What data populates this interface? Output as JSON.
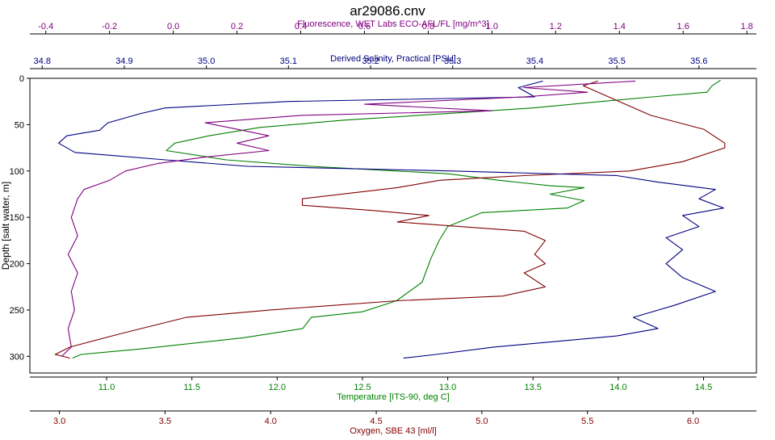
{
  "chart_data": {
    "type": "line",
    "title": "ar29086.cnv",
    "y_axis": {
      "label": "Depth [salt water, m]",
      "range": [
        0,
        318
      ],
      "inverted": true,
      "ticks": [
        0,
        50,
        100,
        150,
        200,
        250,
        300
      ]
    },
    "x_axes": [
      {
        "id": "fluorescence",
        "label": "Fluorescence, WET Labs ECO-AFL/FL [mg/m^3]",
        "position": "top",
        "color": "#800080",
        "range": [
          -0.45,
          1.83
        ],
        "ticks": [
          -0.4,
          -0.2,
          0.0,
          0.2,
          0.4,
          0.6,
          0.8,
          1.0,
          1.2,
          1.4,
          1.6,
          1.8
        ],
        "tick_labels": [
          "-0.4",
          "-0.2",
          "0.0",
          "0.2",
          "0.4",
          "0.6",
          "0.8",
          "1.0",
          "1.2",
          "1.4",
          "1.6",
          "1.8"
        ]
      },
      {
        "id": "salinity",
        "label": "Derived Salinity, Practical [PSU]",
        "position": "top",
        "color": "#000080",
        "range": [
          34.785,
          35.67
        ],
        "ticks": [
          34.8,
          34.9,
          35.0,
          35.1,
          35.2,
          35.3,
          35.4,
          35.5,
          35.6
        ],
        "tick_labels": [
          "34.8",
          "34.9",
          "35.0",
          "35.1",
          "35.2",
          "35.3",
          "35.4",
          "35.5",
          "35.6"
        ]
      },
      {
        "id": "temperature",
        "label": "Temperature [ITS-90, deg C]",
        "position": "bottom",
        "color": "#008000",
        "range": [
          10.55,
          14.81
        ],
        "ticks": [
          11.0,
          11.5,
          12.0,
          12.5,
          13.0,
          13.5,
          14.0,
          14.5
        ],
        "tick_labels": [
          "11.0",
          "11.5",
          "12.0",
          "12.5",
          "13.0",
          "13.5",
          "14.0",
          "14.5"
        ]
      },
      {
        "id": "oxygen",
        "label": "Oxygen, SBE 43 [ml/l]",
        "position": "bottom",
        "color": "#800000",
        "range": [
          2.86,
          6.3
        ],
        "ticks": [
          3.0,
          3.5,
          4.0,
          4.5,
          5.0,
          5.5,
          6.0
        ],
        "tick_labels": [
          "3.0",
          "3.5",
          "4.0",
          "4.5",
          "5.0",
          "5.5",
          "6.0"
        ]
      }
    ],
    "series": [
      {
        "name": "Temperature",
        "axis": "temperature",
        "color": "#008000",
        "points": [
          [
            14.6,
            2
          ],
          [
            14.55,
            8
          ],
          [
            14.52,
            15
          ],
          [
            14.2,
            20
          ],
          [
            13.9,
            25
          ],
          [
            13.5,
            32
          ],
          [
            13.0,
            38
          ],
          [
            12.4,
            45
          ],
          [
            11.9,
            53
          ],
          [
            11.6,
            62
          ],
          [
            11.4,
            70
          ],
          [
            11.35,
            78
          ],
          [
            11.7,
            88
          ],
          [
            12.2,
            95
          ],
          [
            12.7,
            100
          ],
          [
            13.0,
            103
          ],
          [
            13.3,
            110
          ],
          [
            13.6,
            116
          ],
          [
            13.8,
            118
          ],
          [
            13.6,
            125
          ],
          [
            13.8,
            132
          ],
          [
            13.7,
            140
          ],
          [
            13.2,
            145
          ],
          [
            13.0,
            160
          ],
          [
            12.95,
            175
          ],
          [
            12.9,
            195
          ],
          [
            12.85,
            220
          ],
          [
            12.7,
            240
          ],
          [
            12.5,
            252
          ],
          [
            12.2,
            258
          ],
          [
            12.15,
            270
          ],
          [
            11.8,
            280
          ],
          [
            11.2,
            292
          ],
          [
            10.85,
            298
          ],
          [
            10.8,
            302
          ]
        ]
      },
      {
        "name": "Oxygen",
        "axis": "oxygen",
        "color": "#800000",
        "points": [
          [
            5.55,
            3
          ],
          [
            5.48,
            8
          ],
          [
            5.6,
            20
          ],
          [
            5.8,
            40
          ],
          [
            6.05,
            55
          ],
          [
            6.15,
            70
          ],
          [
            6.15,
            75
          ],
          [
            5.95,
            90
          ],
          [
            5.7,
            100
          ],
          [
            5.2,
            105
          ],
          [
            4.8,
            110
          ],
          [
            4.6,
            118
          ],
          [
            4.15,
            130
          ],
          [
            4.15,
            137
          ],
          [
            4.5,
            143
          ],
          [
            4.75,
            148
          ],
          [
            4.6,
            155
          ],
          [
            5.2,
            165
          ],
          [
            5.3,
            175
          ],
          [
            5.25,
            190
          ],
          [
            5.3,
            200
          ],
          [
            5.2,
            210
          ],
          [
            5.3,
            225
          ],
          [
            5.1,
            235
          ],
          [
            4.6,
            240
          ],
          [
            4.0,
            250
          ],
          [
            3.6,
            258
          ],
          [
            3.3,
            275
          ],
          [
            3.05,
            290
          ],
          [
            2.98,
            298
          ],
          [
            3.05,
            302
          ]
        ]
      },
      {
        "name": "Salinity",
        "axis": "salinity",
        "color": "#000080",
        "points": [
          [
            35.41,
            3
          ],
          [
            35.38,
            10
          ],
          [
            35.4,
            20
          ],
          [
            35.1,
            25
          ],
          [
            34.95,
            32
          ],
          [
            34.92,
            38
          ],
          [
            34.88,
            48
          ],
          [
            34.87,
            56
          ],
          [
            34.83,
            62
          ],
          [
            34.82,
            70
          ],
          [
            34.84,
            80
          ],
          [
            34.95,
            88
          ],
          [
            35.05,
            95
          ],
          [
            35.3,
            100
          ],
          [
            35.5,
            105
          ],
          [
            35.55,
            112
          ],
          [
            35.62,
            120
          ],
          [
            35.6,
            130
          ],
          [
            35.63,
            140
          ],
          [
            35.58,
            148
          ],
          [
            35.6,
            160
          ],
          [
            35.56,
            172
          ],
          [
            35.58,
            185
          ],
          [
            35.56,
            200
          ],
          [
            35.58,
            215
          ],
          [
            35.62,
            230
          ],
          [
            35.57,
            245
          ],
          [
            35.52,
            258
          ],
          [
            35.55,
            270
          ],
          [
            35.5,
            278
          ],
          [
            35.35,
            290
          ],
          [
            35.28,
            298
          ],
          [
            35.24,
            302
          ]
        ]
      },
      {
        "name": "Fluorescence",
        "axis": "fluorescence",
        "color": "#800080",
        "points": [
          [
            1.45,
            3
          ],
          [
            1.1,
            10
          ],
          [
            1.3,
            15
          ],
          [
            1.1,
            20
          ],
          [
            0.6,
            28
          ],
          [
            1.0,
            35
          ],
          [
            0.4,
            40
          ],
          [
            0.1,
            48
          ],
          [
            0.2,
            55
          ],
          [
            0.3,
            62
          ],
          [
            0.2,
            70
          ],
          [
            0.3,
            78
          ],
          [
            0.1,
            85
          ],
          [
            -0.05,
            92
          ],
          [
            -0.15,
            100
          ],
          [
            -0.2,
            110
          ],
          [
            -0.28,
            120
          ],
          [
            -0.3,
            130
          ],
          [
            -0.32,
            150
          ],
          [
            -0.3,
            170
          ],
          [
            -0.33,
            190
          ],
          [
            -0.3,
            210
          ],
          [
            -0.32,
            230
          ],
          [
            -0.31,
            250
          ],
          [
            -0.33,
            270
          ],
          [
            -0.32,
            290
          ],
          [
            -0.35,
            300
          ]
        ]
      }
    ]
  }
}
